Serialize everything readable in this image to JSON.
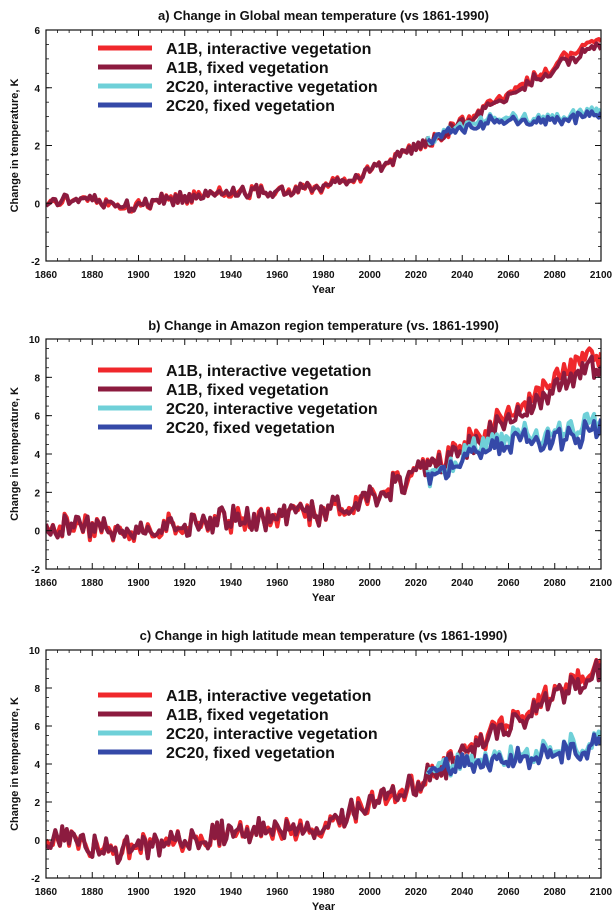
{
  "colors": {
    "a1b_interactive": "#f0282c",
    "a1b_fixed": "#8c1b3f",
    "c20_interactive": "#6fd0d8",
    "c20_fixed": "#3549a8",
    "axis": "#111111",
    "background": "#ffffff"
  },
  "chart_data": [
    {
      "type": "line",
      "title": "a) Change in Global mean temperature (vs 1861-1990)",
      "xlabel": "Year",
      "ylabel": "Change in temperature, K",
      "xlim": [
        1860,
        2100
      ],
      "ylim": [
        -2,
        6
      ],
      "xticks": [
        1860,
        1880,
        1900,
        1920,
        1940,
        1960,
        1980,
        2000,
        2020,
        2040,
        2060,
        2080,
        2100
      ],
      "yticks": [
        -2,
        0,
        2,
        4,
        6
      ],
      "grid": false,
      "legend_position": "top-left",
      "series": [
        {
          "name": "A1B, interactive vegetation",
          "x": [
            1860,
            1870,
            1880,
            1890,
            1900,
            1910,
            1920,
            1930,
            1940,
            1950,
            1960,
            1970,
            1980,
            1990,
            2000,
            2010,
            2020,
            2030,
            2040,
            2050,
            2060,
            2070,
            2080,
            2090,
            2100
          ],
          "values": [
            0.0,
            0.1,
            0.1,
            -0.1,
            -0.1,
            0.1,
            0.2,
            0.3,
            0.4,
            0.4,
            0.4,
            0.5,
            0.6,
            0.8,
            1.1,
            1.5,
            1.9,
            2.3,
            2.8,
            3.3,
            3.8,
            4.3,
            4.8,
            5.3,
            5.7
          ]
        },
        {
          "name": "A1B, fixed vegetation",
          "x": [
            1860,
            1870,
            1880,
            1890,
            1900,
            1910,
            1920,
            1930,
            1940,
            1950,
            1960,
            1970,
            1980,
            1990,
            2000,
            2010,
            2020,
            2030,
            2040,
            2050,
            2060,
            2070,
            2080,
            2090,
            2100
          ],
          "values": [
            0.0,
            0.1,
            0.1,
            -0.1,
            -0.1,
            0.1,
            0.2,
            0.3,
            0.4,
            0.4,
            0.4,
            0.5,
            0.6,
            0.8,
            1.1,
            1.5,
            1.9,
            2.3,
            2.8,
            3.2,
            3.7,
            4.2,
            4.7,
            5.1,
            5.5
          ]
        },
        {
          "name": "2C20, interactive vegetation",
          "x": [
            2025,
            2030,
            2040,
            2050,
            2060,
            2070,
            2080,
            2090,
            2100
          ],
          "values": [
            2.1,
            2.3,
            2.7,
            2.9,
            3.0,
            2.9,
            3.0,
            3.1,
            3.3
          ]
        },
        {
          "name": "2C20, fixed vegetation",
          "x": [
            2025,
            2030,
            2040,
            2050,
            2060,
            2070,
            2080,
            2090,
            2100
          ],
          "values": [
            2.1,
            2.3,
            2.6,
            2.8,
            2.9,
            2.8,
            2.9,
            3.0,
            3.1
          ]
        }
      ]
    },
    {
      "type": "line",
      "title": "b) Change in Amazon region temperature (vs. 1861-1990)",
      "xlabel": "Year",
      "ylabel": "Change in temperature,  K",
      "xlim": [
        1860,
        2100
      ],
      "ylim": [
        -2,
        10
      ],
      "xticks": [
        1860,
        1880,
        1900,
        1920,
        1940,
        1960,
        1980,
        2000,
        2020,
        2040,
        2060,
        2080,
        2100
      ],
      "yticks": [
        -2,
        0,
        2,
        4,
        6,
        8,
        10
      ],
      "grid": false,
      "legend_position": "top-left",
      "series": [
        {
          "name": "A1B, interactive vegetation",
          "x": [
            1860,
            1870,
            1880,
            1890,
            1900,
            1910,
            1920,
            1930,
            1940,
            1950,
            1960,
            1970,
            1980,
            1990,
            2000,
            2010,
            2020,
            2030,
            2040,
            2050,
            2060,
            2070,
            2080,
            2090,
            2100
          ],
          "values": [
            0.0,
            0.3,
            0.2,
            -0.2,
            -0.3,
            0.1,
            0.3,
            0.5,
            0.6,
            0.6,
            0.7,
            0.8,
            0.9,
            1.3,
            1.8,
            2.3,
            2.9,
            3.6,
            4.4,
            5.2,
            6.1,
            7.0,
            7.9,
            8.8,
            9.2
          ]
        },
        {
          "name": "A1B, fixed vegetation",
          "x": [
            1860,
            1870,
            1880,
            1890,
            1900,
            1910,
            1920,
            1930,
            1940,
            1950,
            1960,
            1970,
            1980,
            1990,
            2000,
            2010,
            2020,
            2030,
            2040,
            2050,
            2060,
            2070,
            2080,
            2090,
            2100
          ],
          "values": [
            0.0,
            0.3,
            0.2,
            -0.2,
            -0.3,
            0.1,
            0.3,
            0.5,
            0.6,
            0.6,
            0.7,
            0.8,
            0.9,
            1.3,
            1.8,
            2.3,
            2.9,
            3.5,
            4.2,
            4.9,
            5.7,
            6.5,
            7.3,
            8.1,
            8.6
          ]
        },
        {
          "name": "2C20, interactive vegetation",
          "x": [
            2025,
            2030,
            2040,
            2050,
            2060,
            2070,
            2080,
            2090,
            2100
          ],
          "values": [
            2.8,
            3.2,
            4.0,
            4.6,
            4.8,
            5.0,
            5.1,
            5.4,
            5.5
          ]
        },
        {
          "name": "2C20, fixed vegetation",
          "x": [
            2025,
            2030,
            2040,
            2050,
            2060,
            2070,
            2080,
            2090,
            2100
          ],
          "values": [
            2.8,
            3.1,
            3.8,
            4.3,
            4.6,
            4.7,
            4.8,
            5.0,
            5.2
          ]
        }
      ]
    },
    {
      "type": "line",
      "title": "c) Change in high latitude mean temperature (vs 1861-1990)",
      "xlabel": "Year",
      "ylabel": "Change in temperature, K",
      "xlim": [
        1860,
        2100
      ],
      "ylim": [
        -2,
        10
      ],
      "xticks": [
        1860,
        1880,
        1900,
        1920,
        1940,
        1960,
        1980,
        2000,
        2020,
        2040,
        2060,
        2080,
        2100
      ],
      "yticks": [
        -2,
        0,
        2,
        4,
        6,
        8,
        10
      ],
      "grid": false,
      "legend_position": "top-left",
      "series": [
        {
          "name": "A1B, interactive vegetation",
          "x": [
            1860,
            1870,
            1880,
            1890,
            1900,
            1910,
            1920,
            1930,
            1940,
            1950,
            1960,
            1970,
            1980,
            1990,
            2000,
            2010,
            2020,
            2030,
            2040,
            2050,
            2060,
            2070,
            2080,
            2090,
            2100
          ],
          "values": [
            0.2,
            0.1,
            -0.3,
            -0.5,
            -0.3,
            -0.2,
            0.0,
            0.2,
            0.4,
            0.5,
            0.5,
            0.6,
            0.8,
            1.3,
            2.0,
            2.5,
            3.0,
            3.7,
            4.5,
            5.3,
            6.2,
            7.0,
            7.8,
            8.6,
            9.1
          ]
        },
        {
          "name": "A1B, fixed vegetation",
          "x": [
            1860,
            1870,
            1880,
            1890,
            1900,
            1910,
            1920,
            1930,
            1940,
            1950,
            1960,
            1970,
            1980,
            1990,
            2000,
            2010,
            2020,
            2030,
            2040,
            2050,
            2060,
            2070,
            2080,
            2090,
            2100
          ],
          "values": [
            0.2,
            0.1,
            -0.3,
            -0.5,
            -0.3,
            -0.2,
            0.0,
            0.2,
            0.4,
            0.5,
            0.5,
            0.6,
            0.8,
            1.3,
            2.0,
            2.5,
            3.0,
            3.6,
            4.4,
            5.2,
            6.0,
            6.8,
            7.6,
            8.3,
            8.9
          ]
        },
        {
          "name": "2C20, interactive vegetation",
          "x": [
            2025,
            2030,
            2040,
            2050,
            2060,
            2070,
            2080,
            2090,
            2100
          ],
          "values": [
            3.3,
            3.6,
            4.1,
            4.3,
            4.4,
            4.6,
            4.8,
            4.9,
            5.2
          ]
        },
        {
          "name": "2C20, fixed vegetation",
          "x": [
            2025,
            2030,
            2040,
            2050,
            2060,
            2070,
            2080,
            2090,
            2100
          ],
          "values": [
            3.3,
            3.5,
            4.0,
            4.1,
            4.2,
            4.4,
            4.6,
            4.8,
            5.0
          ]
        }
      ]
    }
  ]
}
